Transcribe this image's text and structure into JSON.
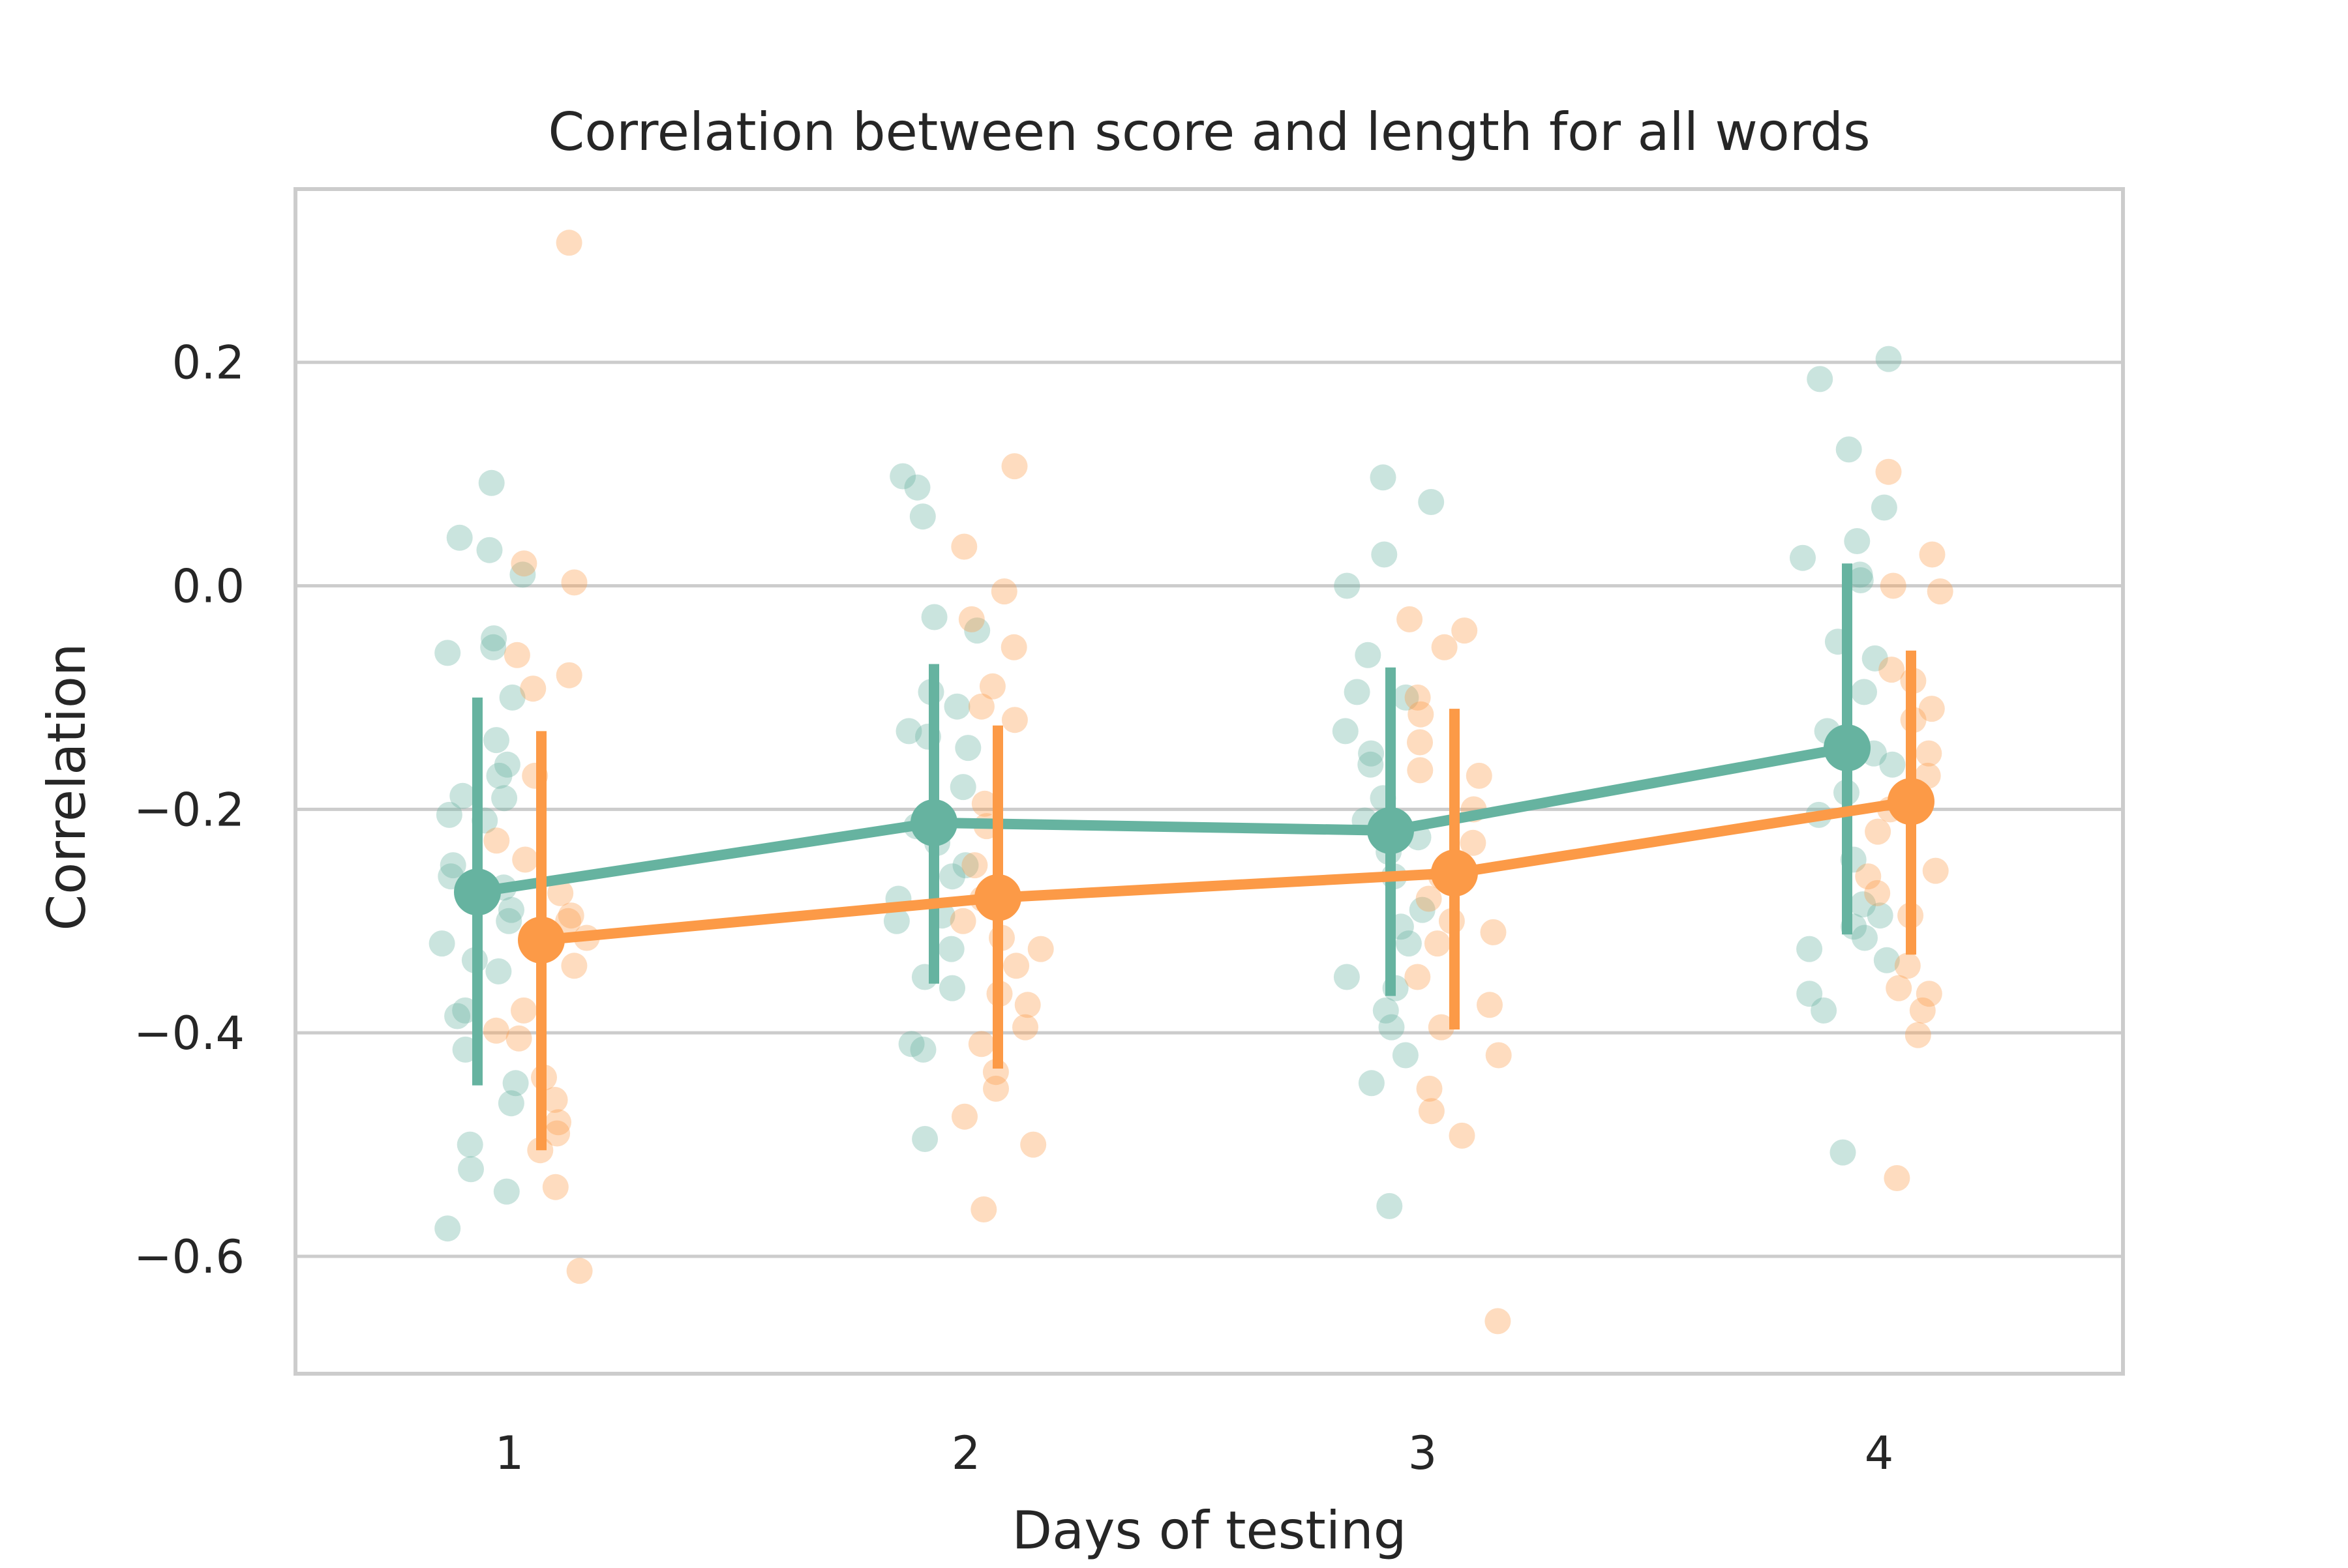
{
  "chart_data": {
    "type": "scatter",
    "title": "Correlation between score and length for all words",
    "xlabel": "Days of testing",
    "ylabel": "Correlation",
    "categories": [
      "1",
      "2",
      "3",
      "4"
    ],
    "x_tick_labels": [
      "1",
      "2",
      "3",
      "4"
    ],
    "y_ticks": [
      0.2,
      0.0,
      -0.2,
      -0.4,
      -0.6
    ],
    "y_tick_labels": [
      "0.2",
      "0.0",
      "−0.2",
      "−0.4",
      "−0.6"
    ],
    "ylim": [
      -0.705,
      0.355
    ],
    "grid": "horizontal",
    "legend": "none",
    "colors": {
      "series_a": "#66b3a0",
      "series_b": "#fc9a47",
      "grid": "#cccccc",
      "spine": "#cccccc"
    },
    "series": [
      {
        "means": [
          -0.274,
          -0.212,
          -0.219,
          -0.145
        ],
        "ci_low": [
          -0.447,
          -0.356,
          -0.367,
          -0.312
        ],
        "ci_high": [
          -0.1,
          -0.07,
          -0.073,
          0.02
        ],
        "points": [
          [
            0.092,
            0.043,
            0.032,
            0.01,
            -0.047,
            -0.055,
            -0.06,
            -0.1,
            -0.138,
            -0.16,
            -0.17,
            -0.188,
            -0.19,
            -0.205,
            -0.21,
            -0.25,
            -0.26,
            -0.27,
            -0.29,
            -0.3,
            -0.32,
            -0.335,
            -0.345,
            -0.38,
            -0.385,
            -0.415,
            -0.445,
            -0.463,
            -0.5,
            -0.522,
            -0.542,
            -0.575
          ],
          [
            0.098,
            0.088,
            0.062,
            -0.028,
            -0.04,
            -0.095,
            -0.108,
            -0.13,
            -0.135,
            -0.145,
            -0.18,
            -0.215,
            -0.23,
            -0.25,
            -0.26,
            -0.28,
            -0.295,
            -0.3,
            -0.325,
            -0.35,
            -0.36,
            -0.41,
            -0.415,
            -0.495
          ],
          [
            0.097,
            0.075,
            0.028,
            0.0,
            -0.062,
            -0.095,
            -0.1,
            -0.13,
            -0.15,
            -0.16,
            -0.19,
            -0.21,
            -0.225,
            -0.238,
            -0.26,
            -0.29,
            -0.305,
            -0.32,
            -0.35,
            -0.36,
            -0.38,
            -0.395,
            -0.42,
            -0.445,
            -0.555
          ],
          [
            0.203,
            0.185,
            0.122,
            0.07,
            0.04,
            0.025,
            0.01,
            0.005,
            -0.05,
            -0.065,
            -0.095,
            -0.13,
            -0.15,
            -0.16,
            -0.185,
            -0.205,
            -0.245,
            -0.285,
            -0.295,
            -0.305,
            -0.315,
            -0.325,
            -0.335,
            -0.365,
            -0.38,
            -0.507
          ]
        ]
      },
      {
        "means": [
          -0.317,
          -0.279,
          -0.257,
          -0.193
        ],
        "ci_low": [
          -0.505,
          -0.432,
          -0.397,
          -0.33
        ],
        "ci_high": [
          -0.13,
          -0.125,
          -0.11,
          -0.058
        ],
        "points": [
          [
            0.307,
            0.02,
            0.003,
            -0.062,
            -0.08,
            -0.092,
            -0.17,
            -0.228,
            -0.245,
            -0.275,
            -0.295,
            -0.3,
            -0.315,
            -0.32,
            -0.34,
            -0.38,
            -0.398,
            -0.405,
            -0.44,
            -0.46,
            -0.48,
            -0.49,
            -0.505,
            -0.538,
            -0.613
          ],
          [
            0.107,
            0.035,
            -0.005,
            -0.03,
            -0.055,
            -0.09,
            -0.108,
            -0.12,
            -0.195,
            -0.215,
            -0.25,
            -0.28,
            -0.3,
            -0.315,
            -0.325,
            -0.34,
            -0.365,
            -0.375,
            -0.395,
            -0.41,
            -0.435,
            -0.45,
            -0.475,
            -0.5,
            -0.558
          ],
          [
            -0.03,
            -0.04,
            -0.055,
            -0.1,
            -0.115,
            -0.14,
            -0.165,
            -0.17,
            -0.2,
            -0.23,
            -0.26,
            -0.28,
            -0.3,
            -0.31,
            -0.32,
            -0.35,
            -0.375,
            -0.395,
            -0.42,
            -0.45,
            -0.47,
            -0.492,
            -0.658
          ],
          [
            0.102,
            0.028,
            0.0,
            -0.005,
            -0.075,
            -0.085,
            -0.11,
            -0.12,
            -0.15,
            -0.17,
            -0.2,
            -0.22,
            -0.255,
            -0.26,
            -0.275,
            -0.295,
            -0.34,
            -0.36,
            -0.365,
            -0.38,
            -0.402,
            -0.53
          ]
        ]
      }
    ]
  }
}
